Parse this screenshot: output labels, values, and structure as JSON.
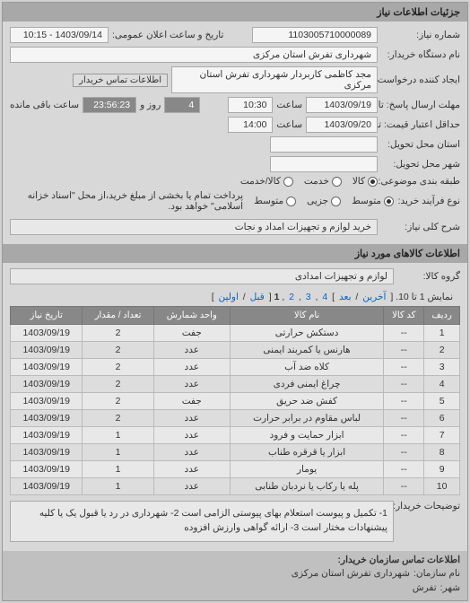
{
  "header_title": "جزئیات اطلاعات نیاز",
  "form": {
    "req_no_label": "شماره نیاز:",
    "req_no": "1103005710000089",
    "announce_label": "تاریخ و ساعت اعلان عمومی:",
    "announce_val": "1403/09/14 - 10:15",
    "buyer_org_label": "نام دستگاه خریدار:",
    "buyer_org": "شهرداری تفرش استان مرکزی",
    "requester_label": "ایجاد کننده درخواست:",
    "requester": "مجد کاظمی کاربردار شهرداری تفرش استان مرکزی",
    "contact_link": "اطلاعات تماس خریدار",
    "deadline_send_label": "مهلت ارسال پاسخ: تا تاریخ:",
    "deadline_send_date": "1403/09/19",
    "time_label": "ساعت",
    "deadline_send_time": "10:30",
    "days_remaining_prefix": "",
    "days_remaining": "4",
    "days_remaining_unit": "روز و",
    "time_remaining": "23:56:23",
    "time_remaining_suffix": "ساعت باقی مانده",
    "valid_label": "حداقل اعتبار قیمت: تا تاریخ:",
    "valid_date": "1403/09/20",
    "valid_time": "14:00",
    "delivery_prov_label": "استان محل تحویل:",
    "delivery_city_label": "شهر محل تحویل:",
    "pack_label": "طبقه بندی موضوعی:",
    "pack_opts": [
      "کالا",
      "خدمت",
      "کالا/خدمت"
    ],
    "pack_selected": 0,
    "proc_label": "نوع فرآیند خرید:",
    "proc_opts": [
      "متوسط",
      "جزیی",
      "متوسط"
    ],
    "proc_selected": 0,
    "proc_note": "پرداخت تمام یا بخشی از مبلغ خرید،از محل \"اسناد خزانه اسلامی\" خواهد بود.",
    "summary_label": "شرح کلی نیاز:",
    "summary": "خرید لوازم و تجهیزات امداد و نجات"
  },
  "goods_header": "اطلاعات کالاهای مورد نیاز",
  "goods_group_label": "گروه کالا:",
  "goods_group": "لوازم و تجهیزات امدادی",
  "pager": {
    "text_prefix": "نمایش 1 تا 10. [",
    "last": "آخرین",
    "next": "بعد",
    "pages": [
      "4",
      "3",
      "2"
    ],
    "current": "1",
    "prev": "قبل",
    "first": "اولین",
    "text_suffix": "]"
  },
  "table": {
    "columns": [
      "ردیف",
      "کد کالا",
      "نام کالا",
      "واحد شمارش",
      "تعداد / مقدار",
      "تاریخ نیاز"
    ],
    "rows": [
      [
        "1",
        "--",
        "دستکش حرارتی",
        "جفت",
        "2",
        "1403/09/19"
      ],
      [
        "2",
        "--",
        "هارنس یا کمربند ایمنی",
        "عدد",
        "2",
        "1403/09/19"
      ],
      [
        "3",
        "--",
        "کلاه ضد آب",
        "عدد",
        "2",
        "1403/09/19"
      ],
      [
        "4",
        "--",
        "چراغ ایمنی فردی",
        "عدد",
        "2",
        "1403/09/19"
      ],
      [
        "5",
        "--",
        "کفش ضد حریق",
        "جفت",
        "2",
        "1403/09/19"
      ],
      [
        "6",
        "--",
        "لباس مقاوم در برابر حرارت",
        "عدد",
        "2",
        "1403/09/19"
      ],
      [
        "7",
        "--",
        "ابزار حمایت و فرود",
        "عدد",
        "1",
        "1403/09/19"
      ],
      [
        "8",
        "--",
        "ابزار یا قرقره طناب",
        "عدد",
        "1",
        "1403/09/19"
      ],
      [
        "9",
        "--",
        "یومار",
        "عدد",
        "1",
        "1403/09/19"
      ],
      [
        "10",
        "--",
        "پله یا رکاب یا نردبان طنابی",
        "عدد",
        "1",
        "1403/09/19"
      ]
    ]
  },
  "buyer_desc_label": "توضیحات خریدار:",
  "buyer_desc": "1- تکمیل و پیوست استعلام بهای پیوستی الزامی است 2- شهرداری در رد یا قبول یک یا کلیه پیشنهادات مختار است 3- ارائه گواهی وارزش افزوده",
  "footer": {
    "title": "اطلاعات تماس سازمان خریدار:",
    "org_label": "نام سازمان:",
    "org": "شهرداری تفرش استان مرکزی",
    "city_label": "شهر:",
    "city": "تفرش"
  }
}
